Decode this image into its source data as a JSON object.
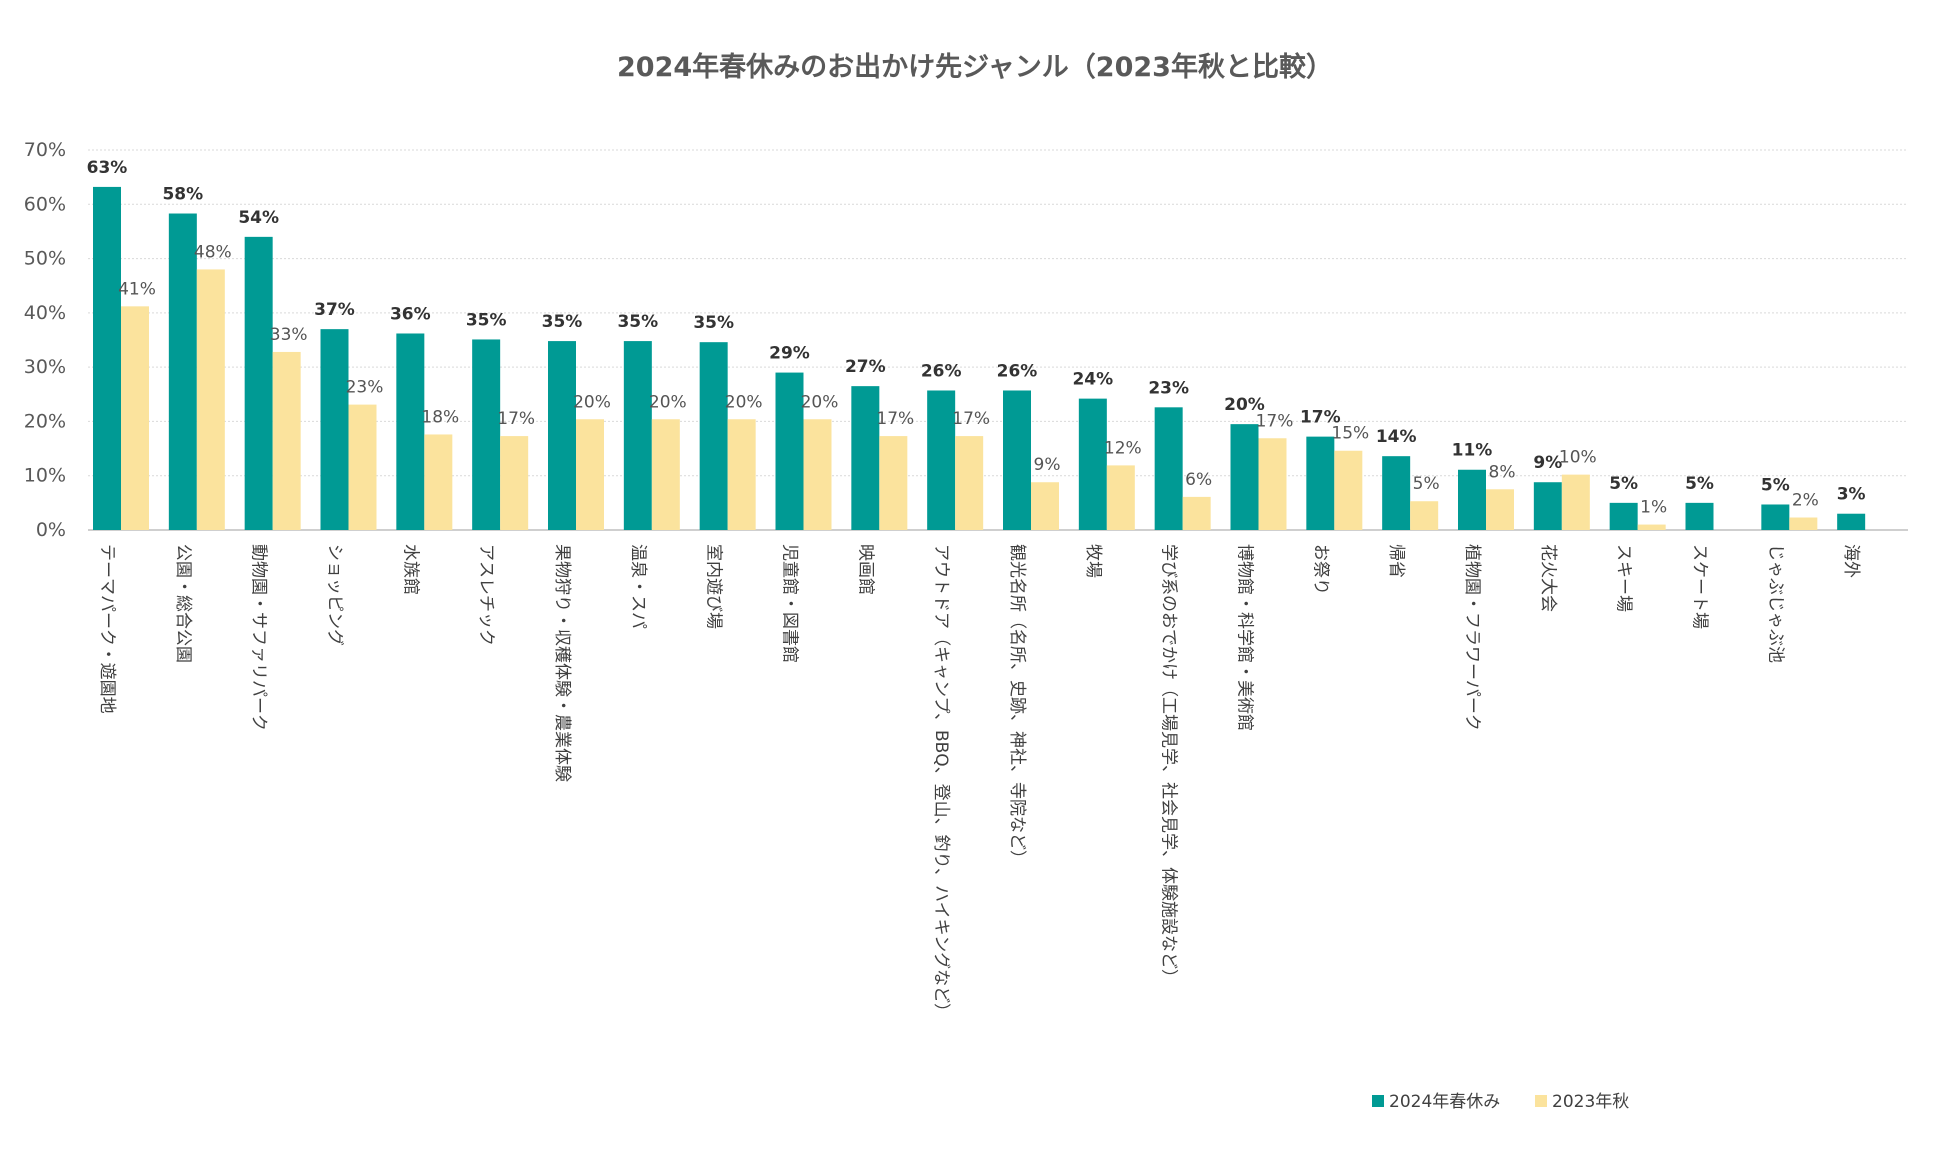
{
  "chart_data": {
    "type": "bar",
    "title": "2024年春休みのお出かけ先ジャンル（2023年秋と比較）",
    "ylim": [
      0,
      70
    ],
    "yticks": [
      "0%",
      "10%",
      "20%",
      "30%",
      "40%",
      "50%",
      "60%",
      "70%"
    ],
    "grid": true,
    "legend_position": "bottom-right",
    "categories": [
      "テーマパーク・遊園地",
      "公園・総合公園",
      "動物園・サファリパーク",
      "ショッピング",
      "水族館",
      "アスレチック",
      "果物狩り・収穫体験・農業体験",
      "温泉・スパ",
      "室内遊び場",
      "児童館・図書館",
      "映画館",
      "アウトドア（キャンプ、BBQ、登山、釣り、ハイキングなど）",
      "観光名所（名所、史跡、神社、寺院など）",
      "牧場",
      "学び系のおでかけ（工場見学、社会見学、体験施設など）",
      "博物館・科学館・美術館",
      "お祭り",
      "帰省",
      "植物園・フラワーパーク",
      "花火大会",
      "スキー場",
      "スケート場",
      "じゃぶじゃぶ池",
      "海外"
    ],
    "series": [
      {
        "name": "2024年春休み",
        "color": "#009a94",
        "values": [
          63.2,
          58.3,
          54.0,
          37.0,
          36.2,
          35.1,
          34.8,
          34.8,
          34.6,
          29.0,
          26.5,
          25.7,
          25.7,
          24.2,
          22.6,
          19.5,
          17.2,
          13.6,
          11.1,
          8.8,
          5.0,
          5.0,
          4.7,
          3.0
        ],
        "labels": [
          "63%",
          "58%",
          "54%",
          "37%",
          "36%",
          "35%",
          "35%",
          "35%",
          "35%",
          "29%",
          "27%",
          "26%",
          "26%",
          "24%",
          "23%",
          "20%",
          "17%",
          "14%",
          "11%",
          "9%",
          "5%",
          "5%",
          "5%",
          "3%"
        ]
      },
      {
        "name": "2023年秋",
        "color": "#fbe39d",
        "values": [
          41.2,
          48.0,
          32.8,
          23.1,
          17.6,
          17.3,
          20.4,
          20.4,
          20.4,
          20.4,
          17.3,
          17.3,
          8.8,
          11.9,
          6.1,
          16.9,
          14.6,
          5.3,
          7.5,
          10.2,
          1.0,
          null,
          2.3,
          null
        ],
        "labels": [
          "41%",
          "48%",
          "33%",
          "23%",
          "18%",
          "17%",
          "20%",
          "20%",
          "20%",
          "20%",
          "17%",
          "17%",
          "9%",
          "12%",
          "6%",
          "17%",
          "15%",
          "5%",
          "8%",
          "10%",
          "1%",
          null,
          "2%",
          null
        ]
      }
    ]
  }
}
